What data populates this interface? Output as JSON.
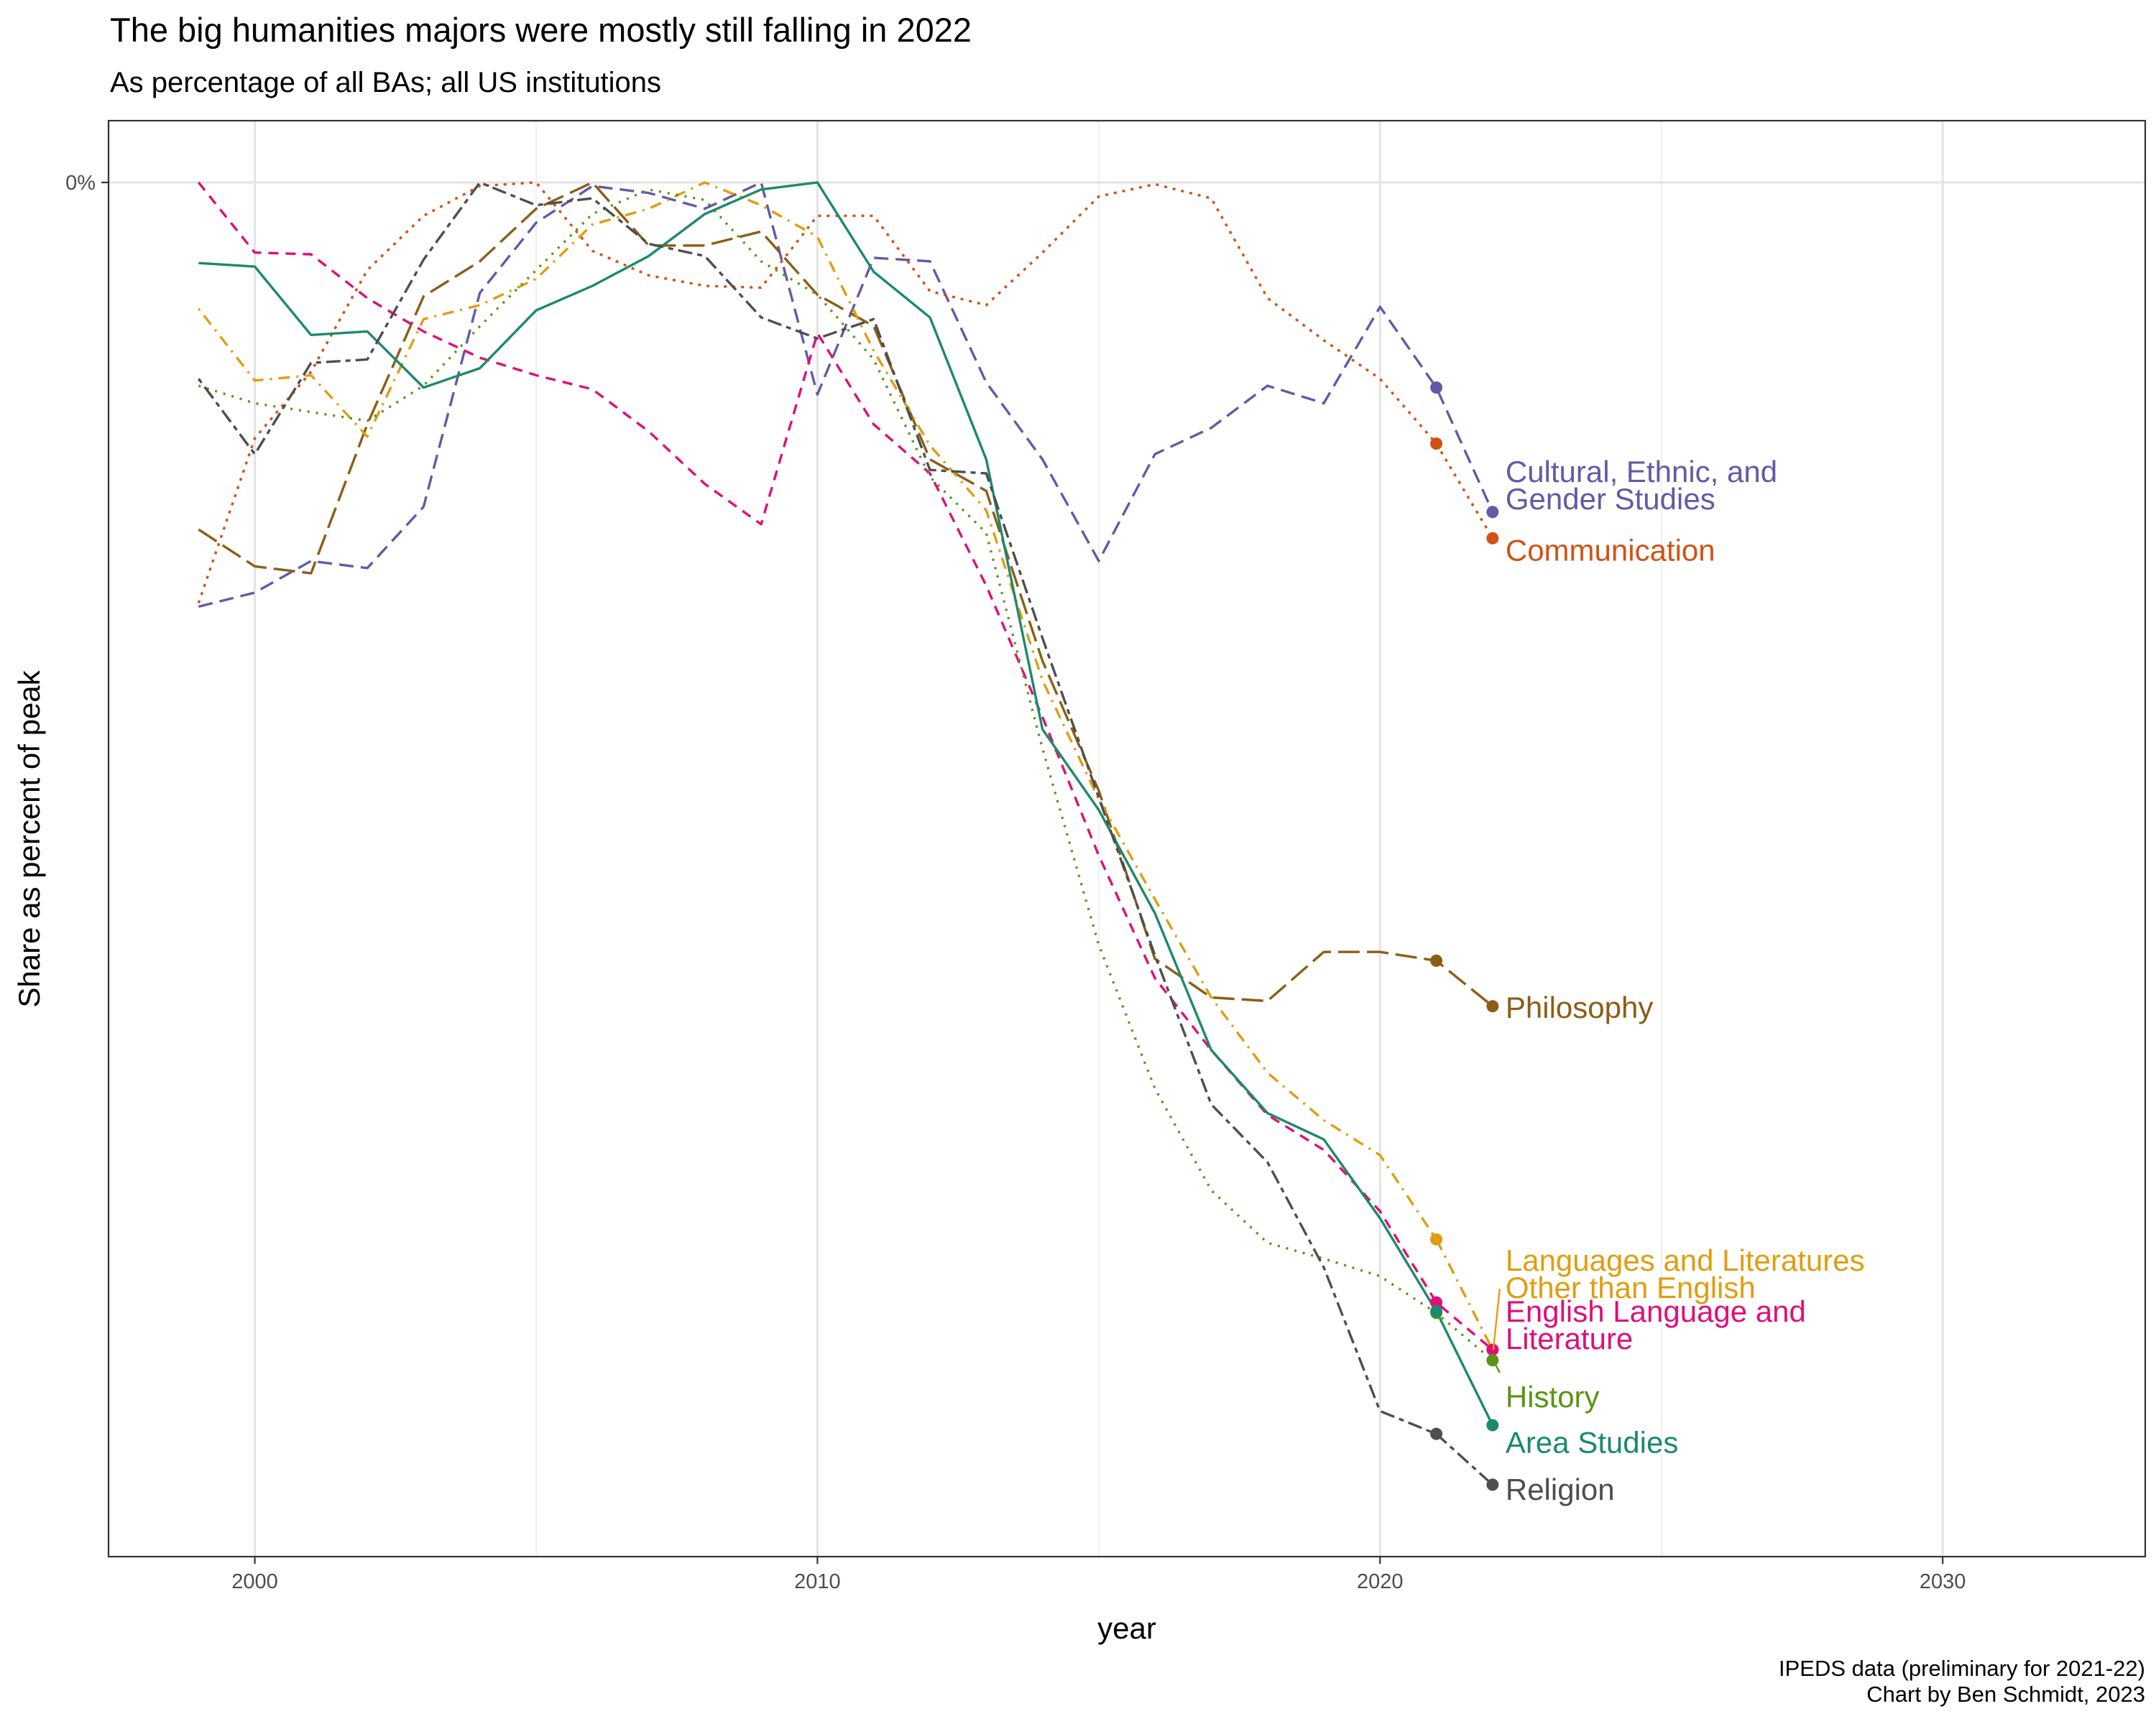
{
  "chart_data": {
    "type": "line",
    "title": "The big humanities majors were mostly still falling in 2022",
    "subtitle": "As percentage of all BAs; all US institutions",
    "xlabel": "year",
    "ylabel": "Share as percent of peak",
    "xlim": [
      1997.4,
      2033.6
    ],
    "ylim": [
      -77.5,
      0
    ],
    "x_ticks": [
      2000,
      2010,
      2020,
      2030
    ],
    "x_tick_labels": [
      "2000",
      "2010",
      "2020",
      "2030"
    ],
    "y_ticks": [
      0
    ],
    "y_tick_labels": [
      "0%"
    ],
    "grid": true,
    "legend": "none",
    "caption": [
      "IPEDS data (preliminary for 2021-22)",
      "Chart by Ben Schmidt, 2023"
    ],
    "series": [
      {
        "name": "Cultural, Ethnic, and Gender Studies",
        "label_lines": [
          "Cultural, Ethnic, and",
          "Gender Studies"
        ],
        "color": "#6459a6",
        "dash": "longdash",
        "x": [
          1999,
          2000,
          2001,
          2002,
          2003,
          2004,
          2005,
          2006,
          2007,
          2008,
          2009,
          2010,
          2011,
          2012,
          2013,
          2014,
          2015,
          2016,
          2017,
          2018,
          2019,
          2020,
          2021,
          2022
        ],
        "values": [
          -24.2,
          -23.4,
          -21.6,
          -22.0,
          -18.5,
          -6.3,
          -2.3,
          -0.2,
          -0.6,
          -1.5,
          0.0,
          -12.1,
          -4.3,
          -4.5,
          -11.4,
          -15.8,
          -21.6,
          -15.5,
          -14.0,
          -11.6,
          -12.6,
          -7.1,
          -11.7,
          -18.8
        ],
        "label_x": 2022,
        "label_y": -17.3
      },
      {
        "name": "Communication",
        "label_lines": [
          "Communication"
        ],
        "color": "#d05314",
        "dash": "dotted",
        "x": [
          1999,
          2000,
          2001,
          2002,
          2003,
          2004,
          2005,
          2006,
          2007,
          2008,
          2009,
          2010,
          2011,
          2012,
          2013,
          2014,
          2015,
          2016,
          2017,
          2018,
          2019,
          2020,
          2021,
          2022
        ],
        "values": [
          -24.0,
          -14.6,
          -10.8,
          -5.0,
          -1.9,
          -0.2,
          0.0,
          -3.9,
          -5.3,
          -5.9,
          -6.0,
          -1.9,
          -1.9,
          -6.2,
          -7.0,
          -4.0,
          -0.8,
          -0.1,
          -0.9,
          -6.6,
          -9.0,
          -11.2,
          -14.9,
          -20.3
        ],
        "label_x": 2022,
        "label_y": -21.0
      },
      {
        "name": "Philosophy",
        "label_lines": [
          "Philosophy"
        ],
        "color": "#8b5e17",
        "dash": "verylongdash",
        "x": [
          1999,
          2000,
          2001,
          2002,
          2003,
          2004,
          2005,
          2006,
          2007,
          2008,
          2009,
          2010,
          2011,
          2012,
          2013,
          2014,
          2015,
          2016,
          2017,
          2018,
          2019,
          2020,
          2021,
          2022
        ],
        "values": [
          -19.8,
          -21.9,
          -22.3,
          -13.8,
          -6.5,
          -4.5,
          -1.5,
          0.0,
          -3.6,
          -3.6,
          -2.8,
          -6.4,
          -8.2,
          -15.8,
          -17.6,
          -27.3,
          -34.7,
          -44.3,
          -46.5,
          -46.7,
          -43.9,
          -43.9,
          -44.4,
          -47.0
        ],
        "label_x": 2022,
        "label_y": -47.1
      },
      {
        "name": "Languages and Literatures Other than English",
        "label_lines": [
          "Languages and Literatures",
          "Other than English"
        ],
        "color": "#df9e0f",
        "dash": "dotdash",
        "x": [
          1999,
          2000,
          2001,
          2002,
          2003,
          2004,
          2005,
          2006,
          2007,
          2008,
          2009,
          2010,
          2011,
          2012,
          2013,
          2014,
          2015,
          2016,
          2017,
          2018,
          2019,
          2020,
          2021,
          2022
        ],
        "values": [
          -7.2,
          -11.3,
          -11.0,
          -14.5,
          -7.8,
          -7.0,
          -5.5,
          -2.4,
          -1.5,
          0.0,
          -1.3,
          -3.1,
          -9.6,
          -15.0,
          -18.7,
          -28.4,
          -35.2,
          -40.9,
          -46.5,
          -50.8,
          -53.5,
          -55.5,
          -60.3,
          -66.6
        ],
        "label_x": 2022,
        "label_y": -62.3
      },
      {
        "name": "English Language and Literature",
        "label_lines": [
          "English Language and",
          "Literature"
        ],
        "color": "#de0f79",
        "dash": "dashed",
        "x": [
          1999,
          2000,
          2001,
          2002,
          2003,
          2004,
          2005,
          2006,
          2007,
          2008,
          2009,
          2010,
          2011,
          2012,
          2013,
          2014,
          2015,
          2016,
          2017,
          2018,
          2019,
          2020,
          2021,
          2022
        ],
        "values": [
          0.0,
          -4.0,
          -4.1,
          -6.6,
          -8.5,
          -10.0,
          -11.0,
          -11.8,
          -14.2,
          -17.2,
          -19.5,
          -8.6,
          -13.8,
          -16.6,
          -23.0,
          -30.5,
          -38.4,
          -45.4,
          -49.5,
          -53.2,
          -55.2,
          -58.7,
          -63.9,
          -66.6
        ],
        "label_x": 2022,
        "label_y": -65.2
      },
      {
        "name": "History",
        "label_lines": [
          "History"
        ],
        "color": "#5a9416",
        "dash": "finedot",
        "x": [
          1999,
          2000,
          2001,
          2002,
          2003,
          2004,
          2005,
          2006,
          2007,
          2008,
          2009,
          2010,
          2011,
          2012,
          2013,
          2014,
          2015,
          2016,
          2017,
          2018,
          2019,
          2020,
          2021,
          2022
        ],
        "values": [
          -11.6,
          -12.6,
          -13.1,
          -13.6,
          -11.6,
          -8.2,
          -5.0,
          -1.8,
          -0.4,
          -1.0,
          -4.5,
          -6.4,
          -10.1,
          -16.8,
          -20.0,
          -32.3,
          -43.5,
          -51.7,
          -57.5,
          -60.5,
          -61.4,
          -62.4,
          -64.5,
          -67.2
        ],
        "label_x": 2022,
        "label_y": -69.3
      },
      {
        "name": "Area Studies",
        "label_lines": [
          "Area Studies"
        ],
        "color": "#1b8a6b",
        "dash": "solid",
        "x": [
          1999,
          2000,
          2001,
          2002,
          2003,
          2004,
          2005,
          2006,
          2007,
          2008,
          2009,
          2010,
          2011,
          2012,
          2013,
          2014,
          2015,
          2016,
          2017,
          2018,
          2019,
          2020,
          2021,
          2022
        ],
        "values": [
          -4.6,
          -4.8,
          -8.7,
          -8.5,
          -11.7,
          -10.6,
          -7.3,
          -5.9,
          -4.2,
          -1.8,
          -0.4,
          0.0,
          -5.1,
          -7.7,
          -15.8,
          -31.2,
          -35.8,
          -41.7,
          -49.5,
          -53.1,
          -54.6,
          -59.1,
          -64.4,
          -70.9
        ],
        "label_x": 2022,
        "label_y": -71.9
      },
      {
        "name": "Religion",
        "label_lines": [
          "Religion"
        ],
        "color": "#4e4e4e",
        "dash": "twodash",
        "x": [
          1999,
          2000,
          2001,
          2002,
          2003,
          2004,
          2005,
          2006,
          2007,
          2008,
          2009,
          2010,
          2011,
          2012,
          2013,
          2014,
          2015,
          2016,
          2017,
          2018,
          2019,
          2020,
          2021,
          2022
        ],
        "values": [
          -11.2,
          -15.5,
          -10.3,
          -10.1,
          -4.4,
          0.0,
          -1.3,
          -0.9,
          -3.5,
          -4.2,
          -7.7,
          -8.9,
          -7.8,
          -16.4,
          -16.6,
          -26.0,
          -35.1,
          -44.1,
          -52.6,
          -55.9,
          -61.9,
          -70.1,
          -71.4,
          -74.3
        ],
        "label_x": 2022,
        "label_y": -74.6
      }
    ]
  }
}
